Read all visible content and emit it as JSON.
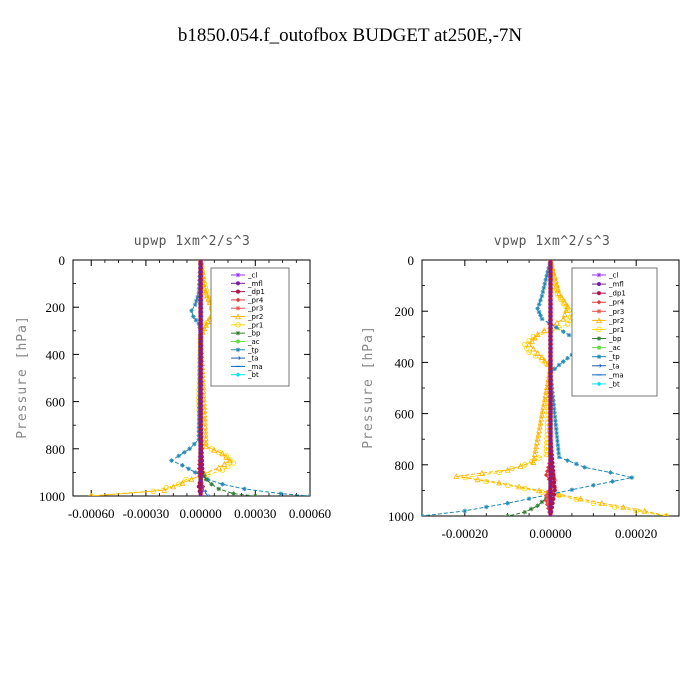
{
  "figure": {
    "title": "b1850.054.f_outofbox  BUDGET at250E,-7N"
  },
  "legend_entries": [
    {
      "label": "_cl",
      "color": "#9b30ff",
      "marker": "star"
    },
    {
      "label": "_mfl",
      "color": "#7b1fa2",
      "marker": "dot"
    },
    {
      "label": "_dp1",
      "color": "#b0124b",
      "marker": "dot"
    },
    {
      "label": "_pr4",
      "color": "#e53935",
      "marker": "diamond"
    },
    {
      "label": "_pr3",
      "color": "#ef5350",
      "marker": "star"
    },
    {
      "label": "_pr2",
      "color": "#ffb300",
      "marker": "tri"
    },
    {
      "label": "_pr1",
      "color": "#ffd600",
      "marker": "circle"
    },
    {
      "label": "_bp",
      "color": "#2e7d32",
      "marker": "star"
    },
    {
      "label": "_ac",
      "color": "#66dd44",
      "marker": "dot"
    },
    {
      "label": "_tp",
      "color": "#1e88b5",
      "marker": "star"
    },
    {
      "label": "_ta",
      "color": "#1e5fb5",
      "marker": "arrow"
    },
    {
      "label": "_ma",
      "color": "#1565c0",
      "marker": "dash"
    },
    {
      "label": "_bt",
      "color": "#00e5ee",
      "marker": "diamond"
    }
  ],
  "chart_data": [
    {
      "type": "line",
      "title": "upwp   1xm^2/s^3",
      "xlabel": "",
      "ylabel": "Pressure [hPa]",
      "xlim": [
        -0.0007,
        0.0006
      ],
      "ylim": [
        1000,
        0
      ],
      "xticks": [
        -0.0006,
        -0.0003,
        0.0,
        0.0003,
        0.0006
      ],
      "xtick_labels": [
        "-0.00060",
        "-0.00030",
        "0.00000",
        "0.00030",
        "0.00060"
      ],
      "yticks": [
        0,
        200,
        400,
        600,
        800,
        1000
      ],
      "ytick_labels": [
        "0",
        "200",
        "400",
        "600",
        "800",
        "1000"
      ],
      "legend_location": "upper right",
      "series": [
        {
          "name": "_pr1",
          "color": "#ffd600",
          "marker": "circle",
          "x": [
            0,
            2e-05,
            4e-05,
            6e-05,
            7e-05,
            5e-05,
            2e-05,
            0,
            -1e-05,
            0,
            1e-05,
            6e-05,
            0.00014,
            0.00018,
            0.00012,
            4e-05,
            -8e-05,
            -0.00012,
            -0.00026,
            -0.0006
          ],
          "y": [
            0,
            100,
            160,
            200,
            230,
            250,
            280,
            320,
            600,
            760,
            780,
            800,
            830,
            860,
            890,
            910,
            930,
            950,
            980,
            1000
          ]
        },
        {
          "name": "_pr2",
          "color": "#ffb300",
          "marker": "tri",
          "x": [
            0,
            2e-05,
            5e-05,
            7e-05,
            4e-05,
            0.0,
            3e-05,
            0.00012,
            0.00016,
            0.0001,
            2e-05,
            -5e-05,
            -0.0002,
            -0.0006
          ],
          "y": [
            0,
            120,
            180,
            220,
            260,
            320,
            790,
            820,
            850,
            880,
            905,
            930,
            975,
            1000
          ]
        },
        {
          "name": "_tp",
          "color": "#1e88b5",
          "marker": "star",
          "x": [
            0,
            -1e-05,
            -3e-05,
            -5e-05,
            -4e-05,
            -1e-05,
            0,
            -1e-05,
            -6e-05,
            -0.00012,
            -0.00016,
            -0.0001,
            -3e-05,
            4e-05,
            0.00012,
            0.00024,
            0.00044,
            0.0006
          ],
          "y": [
            0,
            140,
            190,
            215,
            240,
            270,
            300,
            760,
            800,
            830,
            850,
            870,
            900,
            930,
            950,
            970,
            990,
            1000
          ]
        },
        {
          "name": "_bp",
          "color": "#2e7d32",
          "marker": "star",
          "x": [
            0,
            0,
            0,
            1e-05,
            3e-05,
            6e-05,
            0.0001,
            0.00018,
            0.0003
          ],
          "y": [
            0,
            500,
            860,
            900,
            930,
            950,
            970,
            990,
            1000
          ]
        },
        {
          "name": "_ta",
          "color": "#1e5fb5",
          "marker": "arrow",
          "x": [
            0,
            0,
            0,
            2e-05,
            4e-05
          ],
          "y": [
            0,
            600,
            940,
            980,
            1000
          ]
        },
        {
          "name": "_pr4",
          "color": "#e53935",
          "marker": "diamond",
          "x": [
            0,
            0,
            -1e-05,
            1e-05,
            0
          ],
          "y": [
            0,
            800,
            900,
            960,
            1000
          ]
        },
        {
          "name": "_dp1",
          "color": "#b0124b",
          "marker": "dot",
          "x": [
            0,
            0,
            1e-05,
            -1e-05,
            0
          ],
          "y": [
            0,
            700,
            900,
            960,
            1000
          ]
        },
        {
          "name": "_mfl",
          "color": "#7b1fa2",
          "marker": "dot",
          "x": [
            0,
            0,
            0
          ],
          "y": [
            0,
            500,
            1000
          ]
        },
        {
          "name": "_cl",
          "color": "#9b30ff",
          "marker": "star",
          "x": [
            0,
            0,
            0
          ],
          "y": [
            0,
            500,
            1000
          ]
        }
      ]
    },
    {
      "type": "line",
      "title": "vpwp   1xm^2/s^3",
      "xlabel": "",
      "ylabel": "Pressure [hPa]",
      "xlim": [
        -0.0003,
        0.0003
      ],
      "ylim": [
        1000,
        0
      ],
      "xticks": [
        -0.0002,
        0.0,
        0.0002
      ],
      "xtick_labels": [
        "-0.00020",
        "0.00000",
        "0.00020"
      ],
      "yticks": [
        0,
        200,
        400,
        600,
        800,
        1000
      ],
      "ytick_labels": [
        "0",
        "200",
        "400",
        "600",
        "800",
        "1000"
      ],
      "legend_location": "upper right",
      "series": [
        {
          "name": "_pr1",
          "color": "#ffd600",
          "marker": "circle",
          "x": [
            0,
            1e-05,
            3e-05,
            5e-05,
            4e-05,
            0.0,
            -4e-05,
            -6e-05,
            -5e-05,
            -2e-05,
            0,
            -1e-05,
            -6e-05,
            -0.00012,
            -0.0002,
            -0.0001,
            2e-05,
            0.0001,
            0.0002,
            0.00027
          ],
          "y": [
            0,
            120,
            170,
            210,
            250,
            280,
            300,
            330,
            360,
            390,
            420,
            760,
            800,
            830,
            850,
            880,
            920,
            950,
            980,
            1000
          ]
        },
        {
          "name": "_pr2",
          "color": "#ffb300",
          "marker": "tri",
          "x": [
            0,
            2e-05,
            4e-05,
            3e-05,
            -3e-05,
            -5e-05,
            -2e-05,
            0,
            -4e-05,
            -0.0001,
            -0.00022,
            -0.00012,
            2e-05,
            0.00012,
            0.00022,
            0.00027
          ],
          "y": [
            0,
            130,
            180,
            230,
            290,
            330,
            380,
            420,
            790,
            820,
            845,
            870,
            915,
            950,
            980,
            1000
          ]
        },
        {
          "name": "_tp",
          "color": "#1e88b5",
          "marker": "star",
          "x": [
            0,
            -2e-05,
            -3e-05,
            -2e-05,
            3e-05,
            7e-05,
            5e-05,
            2e-05,
            0,
            2e-05,
            8e-05,
            0.00014,
            0.00019,
            0.0001,
            0.0,
            -0.0001,
            -0.0002,
            -0.0003
          ],
          "y": [
            0,
            140,
            190,
            230,
            280,
            320,
            370,
            410,
            440,
            770,
            810,
            830,
            850,
            880,
            915,
            950,
            980,
            1000
          ]
        },
        {
          "name": "_bp",
          "color": "#2e7d32",
          "marker": "star",
          "x": [
            0,
            0,
            0,
            -1e-05,
            -3e-05,
            -6e-05,
            -0.0001
          ],
          "y": [
            0,
            600,
            900,
            930,
            960,
            985,
            1000
          ]
        },
        {
          "name": "_pr4",
          "color": "#e53935",
          "marker": "diamond",
          "x": [
            0,
            0,
            -1e-05,
            1e-05,
            -1e-05,
            0
          ],
          "y": [
            0,
            780,
            840,
            890,
            940,
            1000
          ]
        },
        {
          "name": "_pr3",
          "color": "#ef5350",
          "marker": "star",
          "x": [
            0,
            0,
            1e-05,
            -1e-05,
            0
          ],
          "y": [
            0,
            800,
            860,
            920,
            1000
          ]
        },
        {
          "name": "_dp1",
          "color": "#b0124b",
          "marker": "dot",
          "x": [
            0,
            0,
            1e-05,
            0
          ],
          "y": [
            0,
            700,
            900,
            1000
          ]
        },
        {
          "name": "_mfl",
          "color": "#7b1fa2",
          "marker": "dot",
          "x": [
            0,
            0,
            0
          ],
          "y": [
            0,
            500,
            1000
          ]
        },
        {
          "name": "_cl",
          "color": "#9b30ff",
          "marker": "star",
          "x": [
            0,
            0,
            0
          ],
          "y": [
            0,
            500,
            1000
          ]
        }
      ]
    }
  ]
}
